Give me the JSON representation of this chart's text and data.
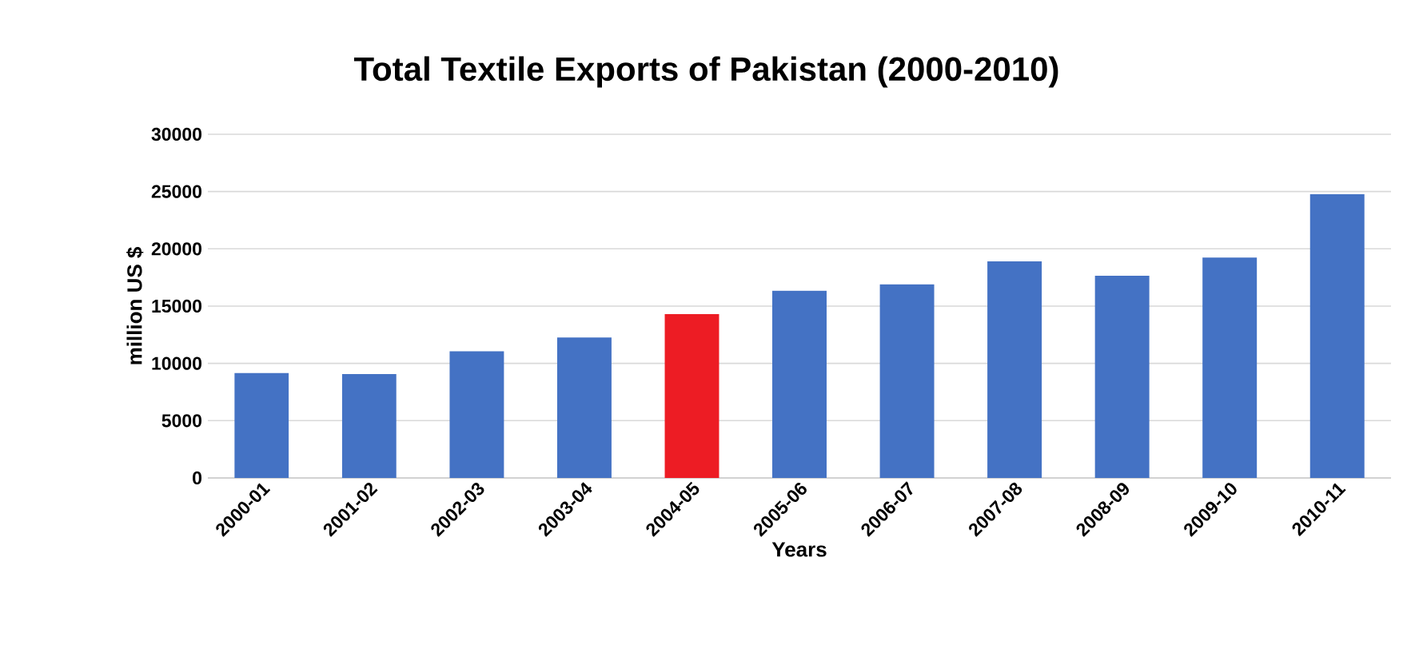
{
  "chart_data": {
    "type": "bar",
    "title": "Total Textile Exports of Pakistan  (2000-2010)",
    "xlabel": "Years",
    "ylabel": "million US $",
    "categories": [
      "2000-01",
      "2001-02",
      "2002-03",
      "2003-04",
      "2004-05",
      "2005-06",
      "2006-07",
      "2007-08",
      "2008-09",
      "2009-10",
      "2010-11"
    ],
    "values": [
      9150,
      9060,
      11050,
      12260,
      14300,
      16350,
      16900,
      18900,
      17650,
      19230,
      24760
    ],
    "colors": [
      "#4472c4",
      "#4472c4",
      "#4472c4",
      "#4472c4",
      "#ed1c24",
      "#4472c4",
      "#4472c4",
      "#4472c4",
      "#4472c4",
      "#4472c4",
      "#4472c4"
    ],
    "ylim": [
      0,
      30000
    ],
    "yticks": [
      0,
      5000,
      10000,
      15000,
      20000,
      25000,
      30000
    ],
    "grid": "y"
  }
}
